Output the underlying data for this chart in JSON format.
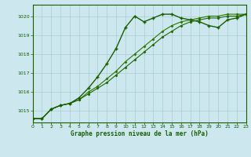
{
  "title": "Graphe pression niveau de la mer (hPa)",
  "background_color": "#cce8ee",
  "grid_color": "#aaccd4",
  "line_color_main": "#1a5c00",
  "line_color_grad1": "#226600",
  "line_color_grad2": "#2d7700",
  "xlim": [
    0,
    23
  ],
  "ylim": [
    1014.4,
    1020.6
  ],
  "yticks": [
    1015,
    1016,
    1017,
    1018,
    1019,
    1020
  ],
  "xticks": [
    0,
    1,
    2,
    3,
    4,
    5,
    6,
    7,
    8,
    9,
    10,
    11,
    12,
    13,
    14,
    15,
    16,
    17,
    18,
    19,
    20,
    21,
    22,
    23
  ],
  "series1_x": [
    0,
    1,
    2,
    3,
    4,
    5,
    6,
    7,
    8,
    9,
    10,
    11,
    12,
    13,
    14,
    15,
    16,
    17,
    18,
    19,
    20,
    21,
    22,
    23
  ],
  "series1_y": [
    1014.6,
    1014.6,
    1015.1,
    1015.3,
    1015.4,
    1015.7,
    1016.2,
    1016.8,
    1017.5,
    1018.3,
    1019.4,
    1020.0,
    1019.7,
    1019.9,
    1020.1,
    1020.1,
    1019.9,
    1019.8,
    1019.7,
    1019.5,
    1019.4,
    1019.8,
    1019.9,
    1020.1
  ],
  "series2_x": [
    0,
    1,
    2,
    3,
    4,
    5,
    6,
    7,
    8,
    9,
    10,
    11,
    12,
    13,
    14,
    15,
    16,
    17,
    18,
    19,
    20,
    21,
    22,
    23
  ],
  "series2_y": [
    1014.6,
    1014.6,
    1015.1,
    1015.3,
    1015.4,
    1015.6,
    1015.9,
    1016.2,
    1016.5,
    1016.9,
    1017.3,
    1017.7,
    1018.1,
    1018.5,
    1018.9,
    1019.2,
    1019.5,
    1019.7,
    1019.8,
    1019.9,
    1019.9,
    1020.0,
    1020.0,
    1020.1
  ],
  "series3_x": [
    0,
    1,
    2,
    3,
    4,
    5,
    6,
    7,
    8,
    9,
    10,
    11,
    12,
    13,
    14,
    15,
    16,
    17,
    18,
    19,
    20,
    21,
    22,
    23
  ],
  "series3_y": [
    1014.6,
    1014.6,
    1015.1,
    1015.3,
    1015.4,
    1015.6,
    1016.0,
    1016.3,
    1016.7,
    1017.1,
    1017.6,
    1018.0,
    1018.4,
    1018.8,
    1019.2,
    1019.5,
    1019.7,
    1019.8,
    1019.9,
    1020.0,
    1020.0,
    1020.1,
    1020.1,
    1020.1
  ]
}
